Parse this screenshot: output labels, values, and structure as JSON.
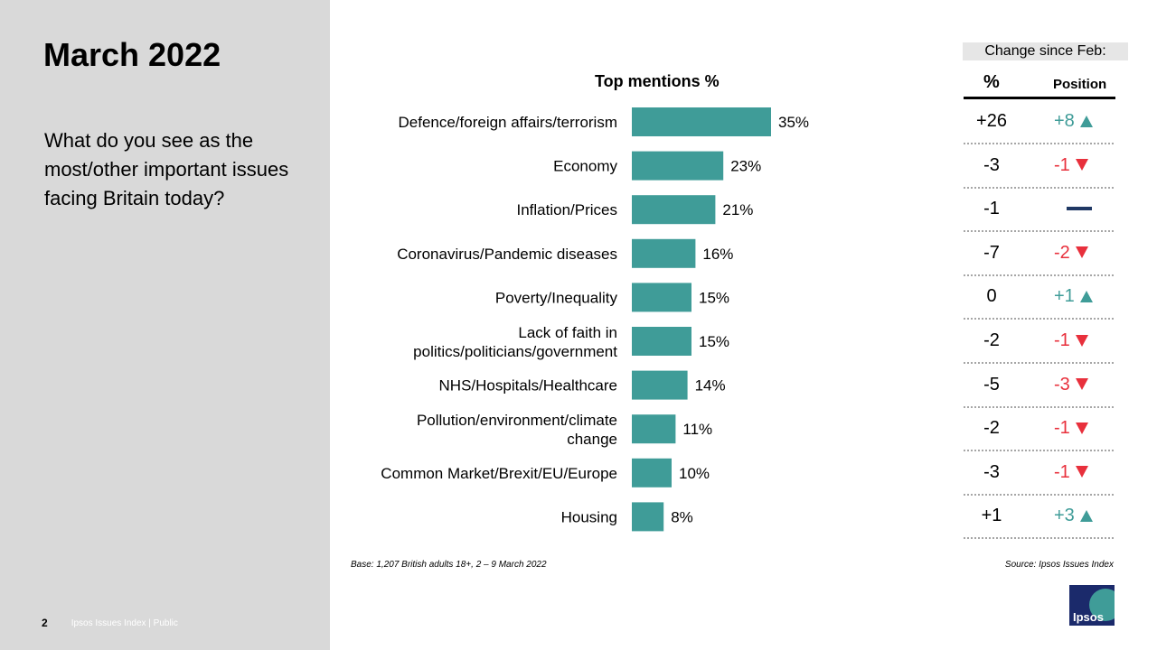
{
  "sidebar": {
    "title": "March 2022",
    "question": "What do you see as the most/other important issues facing Britain today?",
    "page_number": "2",
    "footer_text": "Ipsos Issues Index | Public"
  },
  "chart_data": {
    "type": "bar",
    "orientation": "horizontal",
    "title": "Top mentions %",
    "categories": [
      "Defence/foreign affairs/terrorism",
      "Economy",
      "Inflation/Prices",
      "Coronavirus/Pandemic diseases",
      "Poverty/Inequality",
      "Lack of faith in politics/politicians/government",
      "NHS/Hospitals/Healthcare",
      "Pollution/environment/climate change",
      "Common Market/Brexit/EU/Europe",
      "Housing"
    ],
    "category_lines": [
      [
        "Defence/foreign affairs/terrorism"
      ],
      [
        "Economy"
      ],
      [
        "Inflation/Prices"
      ],
      [
        "Coronavirus/Pandemic diseases"
      ],
      [
        "Poverty/Inequality"
      ],
      [
        "Lack of faith in",
        "politics/politicians/government"
      ],
      [
        "NHS/Hospitals/Healthcare"
      ],
      [
        "Pollution/environment/climate",
        "change"
      ],
      [
        "Common Market/Brexit/EU/Europe"
      ],
      [
        "Housing"
      ]
    ],
    "values": [
      35,
      23,
      21,
      16,
      15,
      15,
      14,
      11,
      10,
      8
    ],
    "value_labels": [
      "35%",
      "23%",
      "21%",
      "16%",
      "15%",
      "15%",
      "14%",
      "11%",
      "10%",
      "8%"
    ],
    "bar_color": "#3f9c98"
  },
  "change": {
    "header": "Change since Feb:",
    "col_pct": "%",
    "col_position": "Position",
    "rows": [
      {
        "pct": "+26",
        "pos": "+8",
        "dir": "up"
      },
      {
        "pct": "-3",
        "pos": "-1",
        "dir": "down"
      },
      {
        "pct": "-1",
        "pos": "",
        "dir": "same"
      },
      {
        "pct": "-7",
        "pos": "-2",
        "dir": "down"
      },
      {
        "pct": "0",
        "pos": "+1",
        "dir": "up"
      },
      {
        "pct": "-2",
        "pos": "-1",
        "dir": "down"
      },
      {
        "pct": "-5",
        "pos": "-3",
        "dir": "down"
      },
      {
        "pct": "-2",
        "pos": "-1",
        "dir": "down"
      },
      {
        "pct": "-3",
        "pos": "-1",
        "dir": "down"
      },
      {
        "pct": "+1",
        "pos": "+3",
        "dir": "up"
      }
    ],
    "colors": {
      "up": "#3f9c98",
      "down": "#e8303c",
      "same": "#1f3864"
    }
  },
  "notes": {
    "base": "Base: 1,207 British adults 18+, 2 – 9 March 2022",
    "source": "Source: Ipsos Issues Index"
  },
  "logo": {
    "text": "Ipsos"
  }
}
